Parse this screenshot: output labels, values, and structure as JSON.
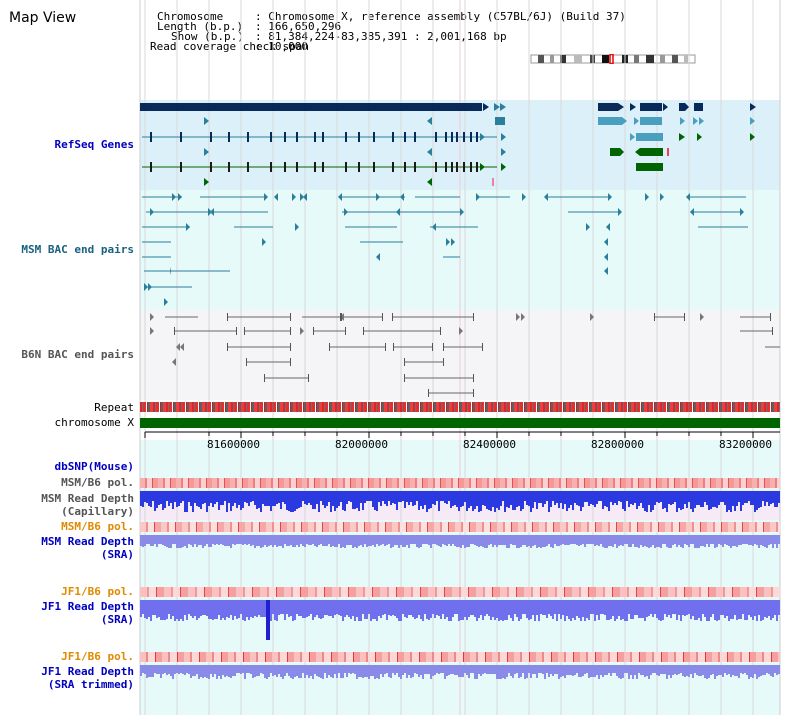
{
  "title": "Map View",
  "header": {
    "chromosome_label": "Chromosome",
    "chromosome_value": ": Chromosome X, reference assembly (C57BL/6J) (Build 37)",
    "length_label": "Length (b.p.)",
    "length_value": ": 166,650,296",
    "show_label": "Show (b.p.)",
    "show_value": ": 81,384,224-83,385,391 : 2,001,168 bp",
    "coverage_label": "Read coverage check span",
    "coverage_value": ": 10,000"
  },
  "tracks": {
    "refseq": "RefSeq Genes",
    "msm_bac": "MSM BAC end pairs",
    "b6n_bac": "B6N BAC end pairs",
    "repeat": "Repeat",
    "chrom": "chromosome X",
    "dbsnp": "dbSNP(Mouse)",
    "msm_b6_pol_1": "MSM/B6 pol.",
    "msm_rd_cap_1": "MSM Read Depth",
    "msm_rd_cap_2": "(Capillary)",
    "msm_b6_pol_2": "MSM/B6 pol.",
    "msm_rd_sra_1": "MSM Read Depth",
    "msm_rd_sra_2": "(SRA)",
    "jf1_b6_pol_1": "JF1/B6 pol.",
    "jf1_rd_sra_1": "JF1 Read Depth",
    "jf1_rd_sra_2": "(SRA)",
    "jf1_b6_pol_2": "JF1/B6 pol.",
    "jf1_rd_trim_1": "JF1 Read Depth",
    "jf1_rd_trim_2": "(SRA trimmed)"
  },
  "axis": {
    "ticks": [
      "81600000",
      "82000000",
      "82400000",
      "82800000",
      "83200000"
    ]
  },
  "colors": {
    "refseq_bg": "#dcf0fa",
    "msm_bg": "#e6fafa",
    "b6n_bg": "#f5f5f8",
    "blue_label": "#0000c0",
    "orange_label": "#e08a00",
    "dark_navy": "#082a5a",
    "teal": "#2a7f9a",
    "green": "#006400"
  }
}
